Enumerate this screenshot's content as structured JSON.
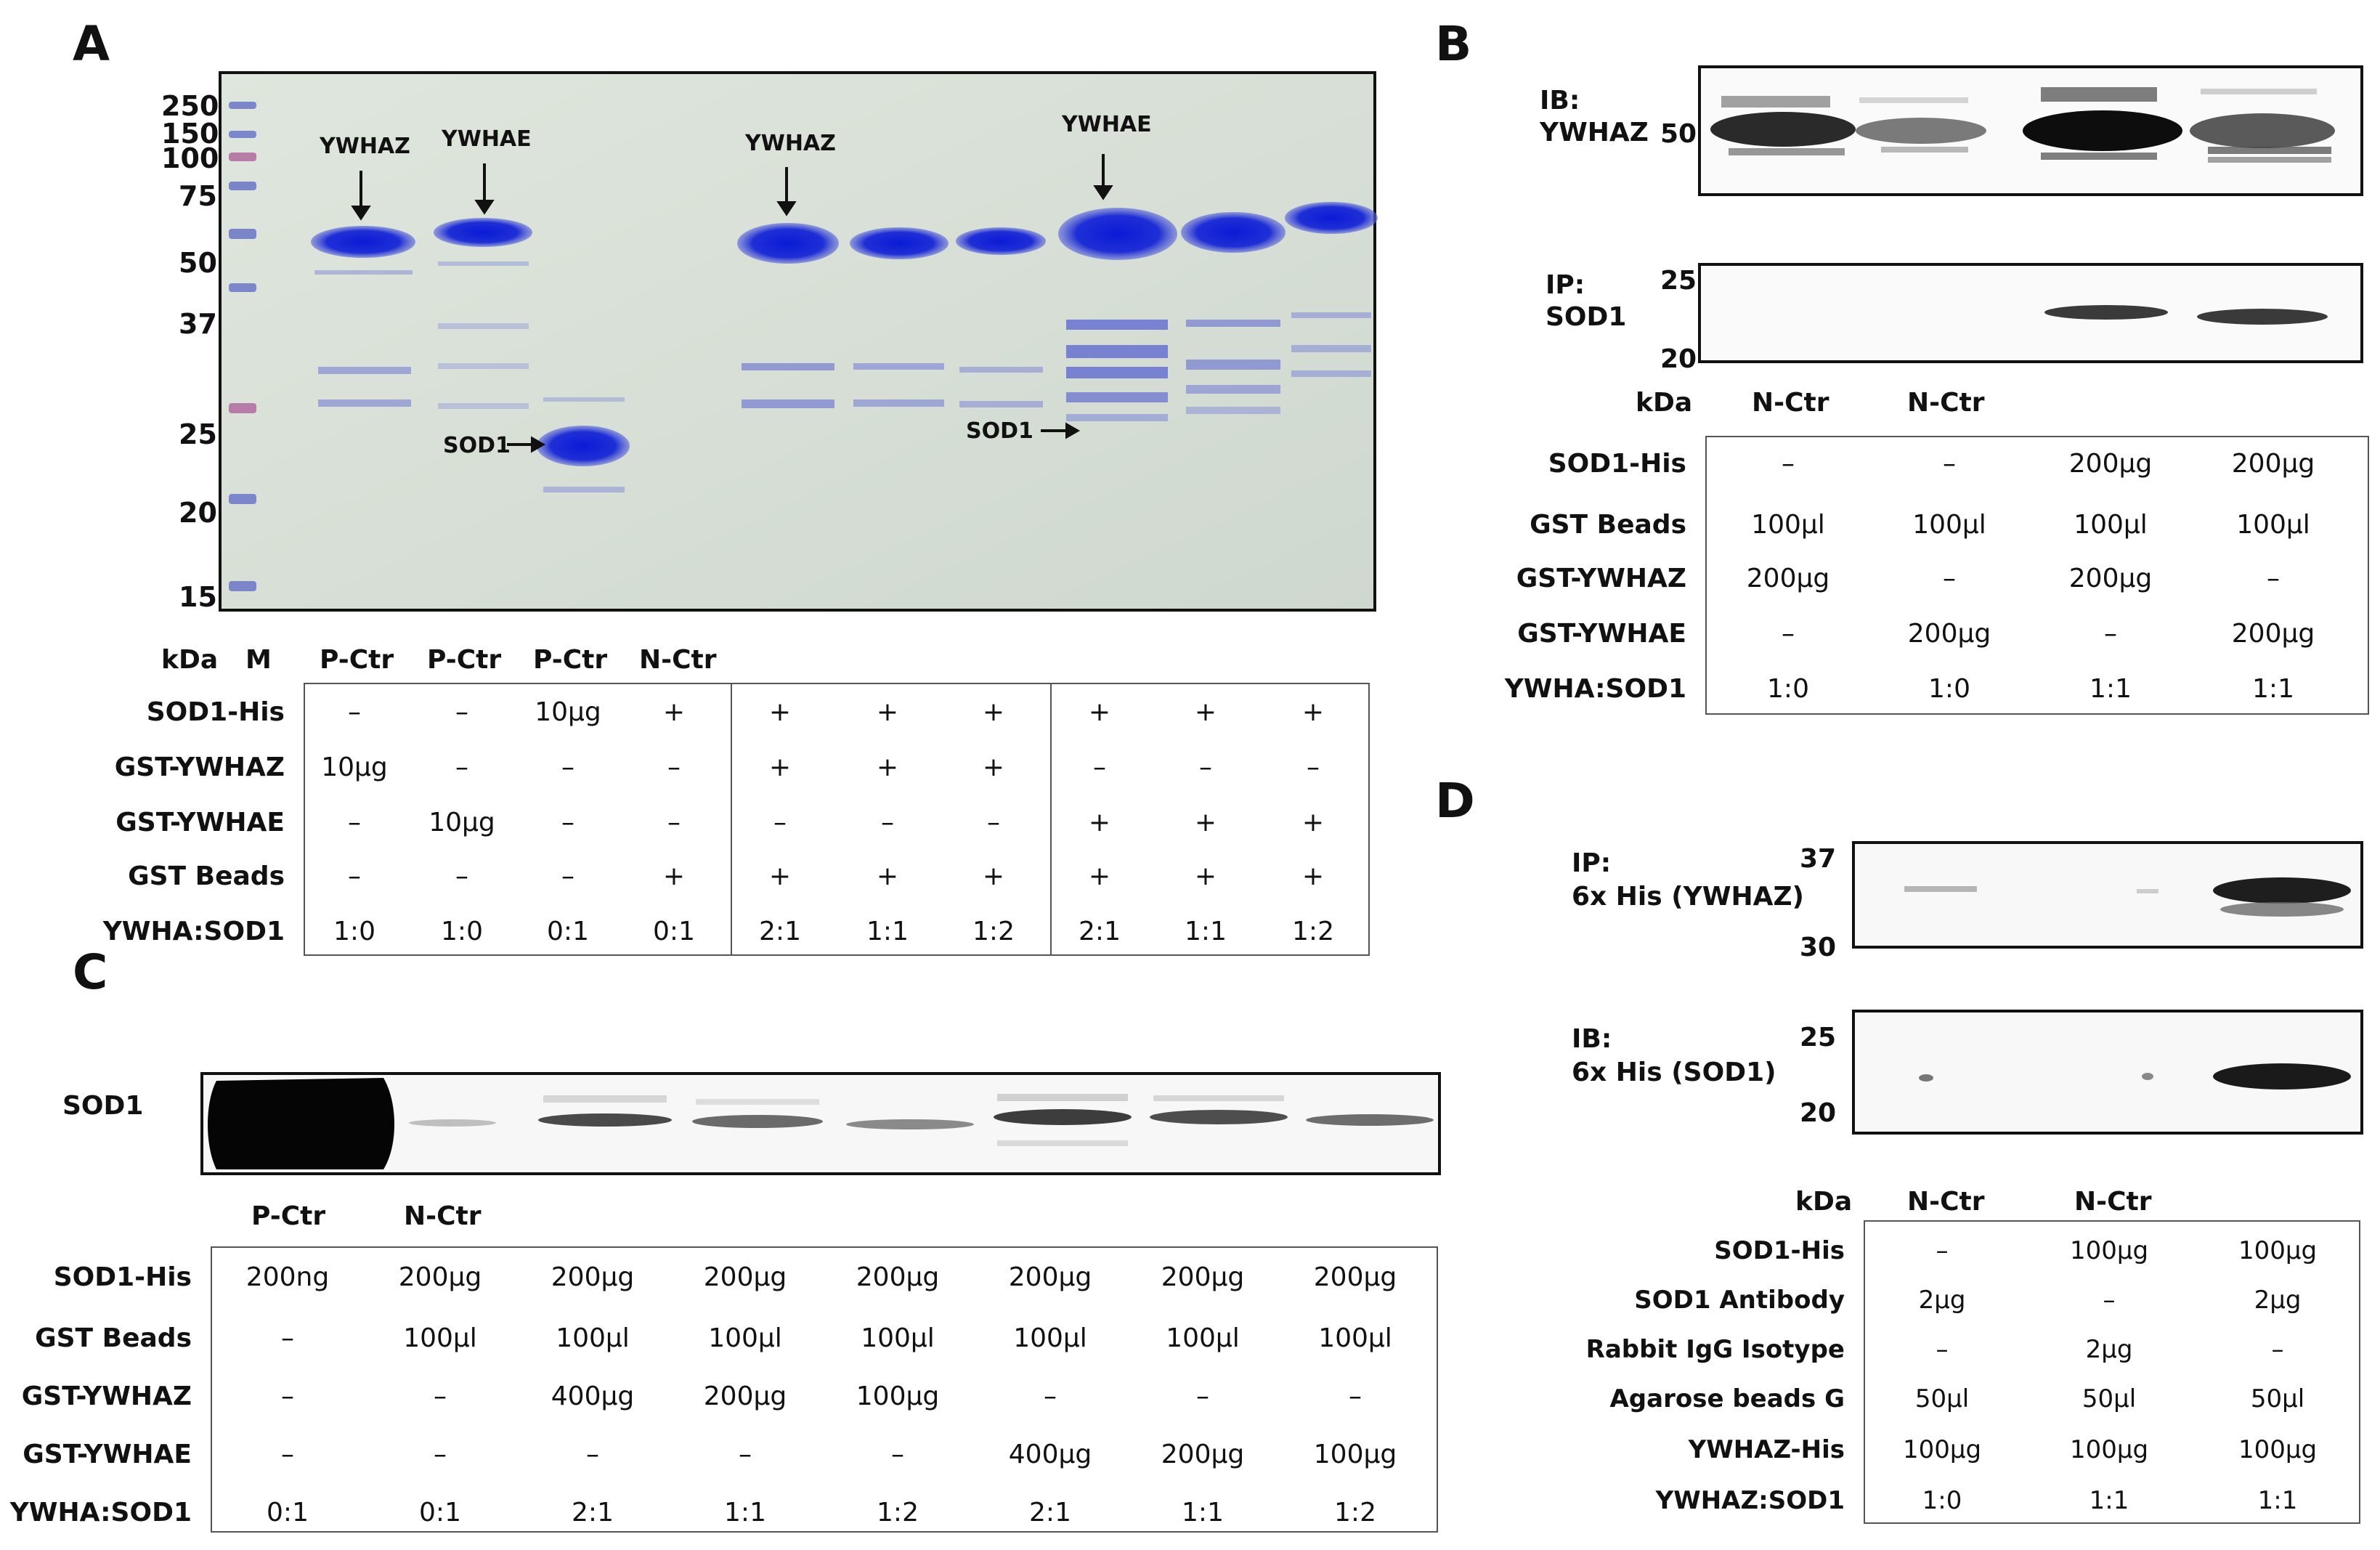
{
  "panels": {
    "A": {
      "letter": "A",
      "markers": [
        "250",
        "150",
        "100",
        "75",
        "50",
        "37",
        "25",
        "20",
        "15"
      ],
      "arrows": [
        "YWHAZ",
        "YWHAE",
        "YWHAZ",
        "YWHAE"
      ],
      "sod1_arrows": [
        "SOD1",
        "SOD1"
      ],
      "header": [
        "kDa",
        "M",
        "P-Ctr",
        "P-Ctr",
        "P-Ctr",
        "N-Ctr"
      ],
      "rows": [
        {
          "label": "SOD1-His",
          "values": [
            "–",
            "–",
            "10µg",
            "+",
            "+",
            "+",
            "+",
            "+",
            "+",
            "+"
          ]
        },
        {
          "label": "GST-YWHAZ",
          "values": [
            "10µg",
            "–",
            "–",
            "–",
            "+",
            "+",
            "+",
            "–",
            "–",
            "–"
          ]
        },
        {
          "label": "GST-YWHAE",
          "values": [
            "–",
            "10µg",
            "–",
            "–",
            "–",
            "–",
            "–",
            "+",
            "+",
            "+"
          ]
        },
        {
          "label": "GST Beads",
          "values": [
            "–",
            "–",
            "–",
            "+",
            "+",
            "+",
            "+",
            "+",
            "+",
            "+"
          ]
        },
        {
          "label": "YWHA:SOD1",
          "values": [
            "1:0",
            "1:0",
            "0:1",
            "0:1",
            "2:1",
            "1:1",
            "1:2",
            "2:1",
            "1:1",
            "1:2"
          ]
        }
      ]
    },
    "B": {
      "letter": "B",
      "blot1_label_line1": "IB:",
      "blot1_label_line2": "YWHAZ",
      "blot1_marker": "50",
      "blot2_label_line1": "IP:",
      "blot2_label_line2": "SOD1",
      "blot2_markers": [
        "25",
        "20"
      ],
      "header": [
        "kDa",
        "N-Ctr",
        "N-Ctr"
      ],
      "rows": [
        {
          "label": "SOD1-His",
          "values": [
            "–",
            "–",
            "200µg",
            "200µg"
          ]
        },
        {
          "label": "GST Beads",
          "values": [
            "100µl",
            "100µl",
            "100µl",
            "100µl"
          ]
        },
        {
          "label": "GST-YWHAZ",
          "values": [
            "200µg",
            "–",
            "200µg",
            "–"
          ]
        },
        {
          "label": "GST-YWHAE",
          "values": [
            "–",
            "200µg",
            "–",
            "200µg"
          ]
        },
        {
          "label": "YWHA:SOD1",
          "values": [
            "1:0",
            "1:0",
            "1:1",
            "1:1"
          ]
        }
      ]
    },
    "C": {
      "letter": "C",
      "blot_label": "SOD1",
      "header": [
        "P-Ctr",
        "N-Ctr"
      ],
      "rows": [
        {
          "label": "SOD1-His",
          "values": [
            "200ng",
            "200µg",
            "200µg",
            "200µg",
            "200µg",
            "200µg",
            "200µg",
            "200µg"
          ]
        },
        {
          "label": "GST Beads",
          "values": [
            "–",
            "100µl",
            "100µl",
            "100µl",
            "100µl",
            "100µl",
            "100µl",
            "100µl"
          ]
        },
        {
          "label": "GST-YWHAZ",
          "values": [
            "–",
            "–",
            "400µg",
            "200µg",
            "100µg",
            "–",
            "–",
            "–"
          ]
        },
        {
          "label": "GST-YWHAE",
          "values": [
            "–",
            "–",
            "–",
            "–",
            "–",
            "400µg",
            "200µg",
            "100µg"
          ]
        },
        {
          "label": "YWHA:SOD1",
          "values": [
            "0:1",
            "0:1",
            "2:1",
            "1:1",
            "1:2",
            "2:1",
            "1:1",
            "1:2"
          ]
        }
      ]
    },
    "D": {
      "letter": "D",
      "blot1_label_line1": "IP:",
      "blot1_label_line2": "6x His (YWHAZ)",
      "blot1_markers": [
        "37",
        "30"
      ],
      "blot2_label_line1": "IB:",
      "blot2_label_line2": "6x His (SOD1)",
      "blot2_markers": [
        "25",
        "20"
      ],
      "header": [
        "kDa",
        "N-Ctr",
        "N-Ctr"
      ],
      "rows": [
        {
          "label": "SOD1-His",
          "values": [
            "–",
            "100µg",
            "100µg"
          ]
        },
        {
          "label": "SOD1 Antibody",
          "values": [
            "2µg",
            "–",
            "2µg"
          ]
        },
        {
          "label": "Rabbit IgG Isotype",
          "values": [
            "–",
            "2µg",
            "–"
          ]
        },
        {
          "label": "Agarose beads G",
          "values": [
            "50µl",
            "50µl",
            "50µl"
          ]
        },
        {
          "label": "YWHAZ-His",
          "values": [
            "100µg",
            "100µg",
            "100µg"
          ]
        },
        {
          "label": "YWHAZ:SOD1",
          "values": [
            "1:0",
            "1:1",
            "1:1"
          ]
        }
      ]
    }
  }
}
